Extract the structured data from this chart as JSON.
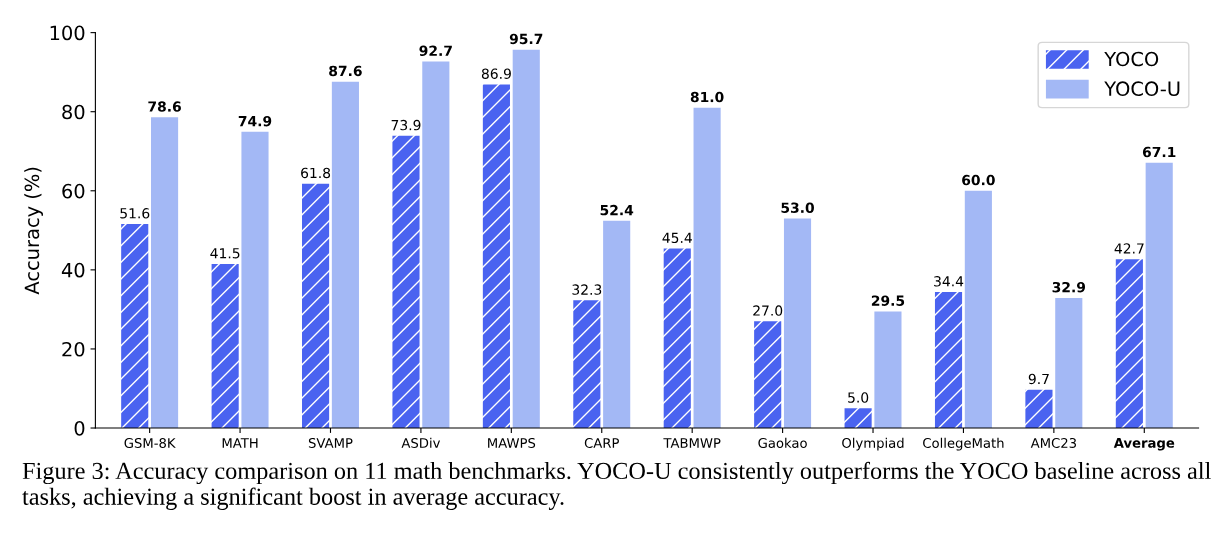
{
  "chart_data": {
    "type": "bar",
    "categories": [
      "GSM-8K",
      "MATH",
      "SVAMP",
      "ASDiv",
      "MAWPS",
      "CARP",
      "TABMWP",
      "Gaokao",
      "Olympiad",
      "CollegeMath",
      "AMC23",
      "Average"
    ],
    "series": [
      {
        "name": "YOCO",
        "color": "#4a63f0",
        "values": [
          51.6,
          41.5,
          61.8,
          73.9,
          86.9,
          32.3,
          45.4,
          27.0,
          5.0,
          34.4,
          9.7,
          42.7
        ],
        "value_labels": [
          "51.6",
          "41.5",
          "61.8",
          "73.9",
          "86.9",
          "32.3",
          "45.4",
          "27.0",
          "5.0",
          "34.4",
          "9.7",
          "42.7"
        ]
      },
      {
        "name": "YOCO-U",
        "color": "#a3b8f5",
        "values": [
          78.6,
          74.9,
          87.6,
          92.7,
          95.7,
          52.4,
          81.0,
          53.0,
          29.5,
          60.0,
          32.9,
          67.1
        ],
        "value_labels": [
          "78.6",
          "74.9",
          "87.6",
          "92.7",
          "95.7",
          "52.4",
          "81.0",
          "53.0",
          "29.5",
          "60.0",
          "32.9",
          "67.1"
        ]
      }
    ],
    "ylabel": "Accuracy (%)",
    "ylim": [
      0,
      100
    ],
    "yticks": [
      0,
      20,
      40,
      60,
      80,
      100
    ],
    "grid": false,
    "legend": "top right",
    "annotations": [
      "Figure 3: Accuracy comparison on 11 math benchmarks. YOCO-U consistently outperforms the YOCO baseline across all tasks, achieving a significant boost in average accuracy."
    ]
  }
}
